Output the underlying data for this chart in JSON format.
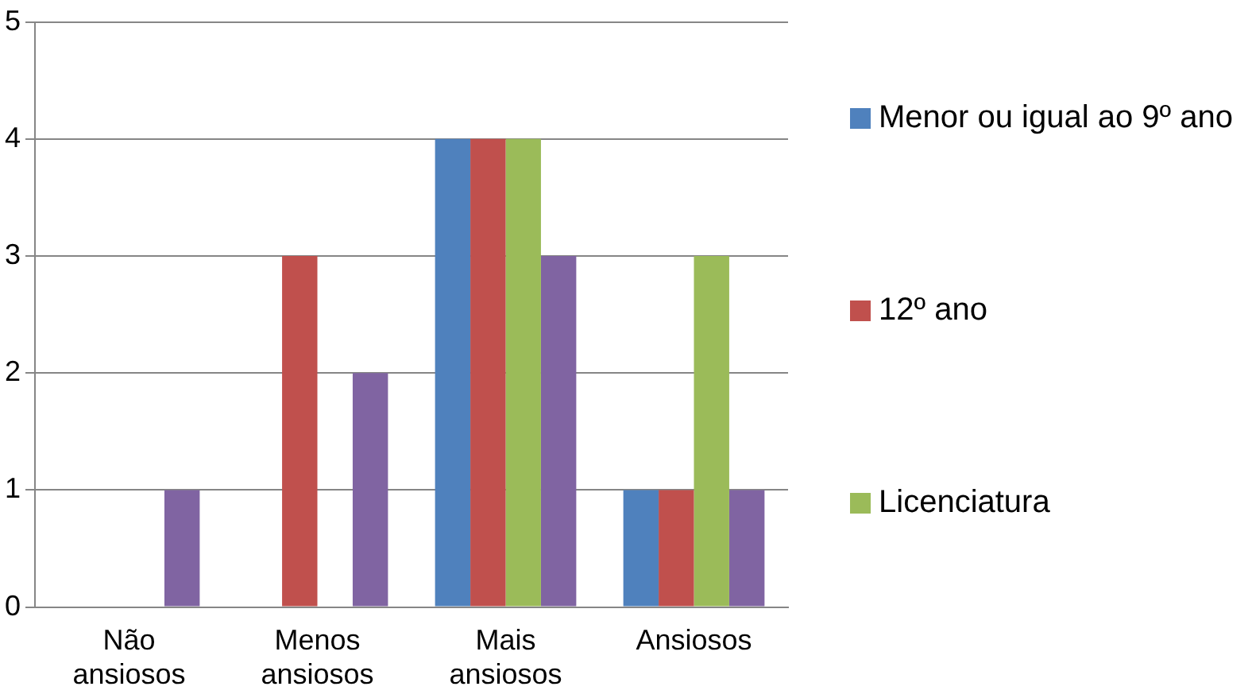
{
  "chart_data": {
    "type": "bar",
    "categories": [
      "Não ansiosos",
      "Menos ansiosos",
      "Mais ansiosos",
      "Ansiosos"
    ],
    "series": [
      {
        "name": "Menor ou igual ao 9º ano",
        "color": "#4f81bd",
        "values": [
          0,
          0,
          4,
          1
        ]
      },
      {
        "name": "12º ano",
        "color": "#c0504d",
        "values": [
          0,
          3,
          4,
          1
        ]
      },
      {
        "name": "Licenciatura",
        "color": "#9bbb59",
        "values": [
          0,
          0,
          4,
          3
        ]
      },
      {
        "color": "#8064a2",
        "values": [
          1,
          2,
          3,
          1
        ]
      }
    ],
    "ylim": [
      0,
      5
    ],
    "yticks": [
      0,
      1,
      2,
      3,
      4,
      5
    ],
    "grid": "y",
    "legend": "right"
  }
}
